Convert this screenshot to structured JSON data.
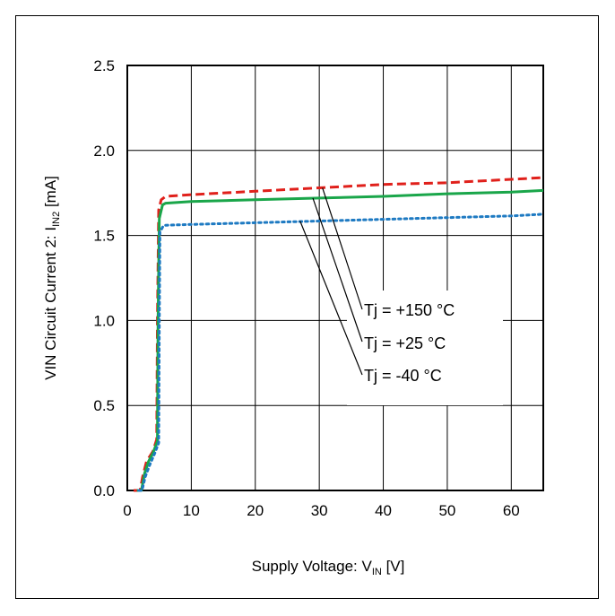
{
  "chart_data": {
    "type": "line",
    "title": "",
    "xlabel": {
      "main": "Supply Voltage: V",
      "sub": "IN",
      "unit": " [V]"
    },
    "ylabel": {
      "main": "VIN Circuit Current 2: I",
      "sub": "IN2",
      "unit": " [mA]"
    },
    "xlim": [
      0,
      65
    ],
    "ylim": [
      0,
      2.5
    ],
    "x_ticks": [
      "0",
      "10",
      "20",
      "30",
      "40",
      "50",
      "60"
    ],
    "y_ticks": [
      "0.0",
      "0.5",
      "1.0",
      "1.5",
      "2.0",
      "2.5"
    ],
    "grid": true,
    "series": [
      {
        "name": "Tj = +150 °C",
        "color": "#e0201b",
        "style": "dashed",
        "points": [
          [
            1.0,
            0.0
          ],
          [
            2.0,
            0.0
          ],
          [
            2.4,
            0.08
          ],
          [
            3.0,
            0.17
          ],
          [
            4.0,
            0.23
          ],
          [
            4.6,
            0.3
          ],
          [
            4.7,
            1.0
          ],
          [
            4.9,
            1.65
          ],
          [
            5.3,
            1.71
          ],
          [
            6.0,
            1.73
          ],
          [
            10,
            1.74
          ],
          [
            20,
            1.76
          ],
          [
            30,
            1.78
          ],
          [
            40,
            1.8
          ],
          [
            50,
            1.81
          ],
          [
            60,
            1.83
          ],
          [
            65,
            1.84
          ]
        ]
      },
      {
        "name": "Tj = +25 °C",
        "color": "#1aa64a",
        "style": "solid",
        "points": [
          [
            1.5,
            0.0
          ],
          [
            2.2,
            0.0
          ],
          [
            2.7,
            0.1
          ],
          [
            3.3,
            0.17
          ],
          [
            4.0,
            0.22
          ],
          [
            4.7,
            0.29
          ],
          [
            4.8,
            1.0
          ],
          [
            5.0,
            1.6
          ],
          [
            5.5,
            1.68
          ],
          [
            6.0,
            1.69
          ],
          [
            10,
            1.7
          ],
          [
            20,
            1.71
          ],
          [
            30,
            1.72
          ],
          [
            40,
            1.73
          ],
          [
            50,
            1.745
          ],
          [
            60,
            1.755
          ],
          [
            65,
            1.765
          ]
        ]
      },
      {
        "name": "Tj = -40 °C",
        "color": "#1e7ac2",
        "style": "dotted",
        "points": [
          [
            1.8,
            0.0
          ],
          [
            2.3,
            0.0
          ],
          [
            2.8,
            0.08
          ],
          [
            3.5,
            0.15
          ],
          [
            4.3,
            0.22
          ],
          [
            4.9,
            0.28
          ],
          [
            5.0,
            1.0
          ],
          [
            5.1,
            1.52
          ],
          [
            5.6,
            1.555
          ],
          [
            6.0,
            1.56
          ],
          [
            10,
            1.565
          ],
          [
            20,
            1.575
          ],
          [
            30,
            1.585
          ],
          [
            40,
            1.595
          ],
          [
            50,
            1.605
          ],
          [
            60,
            1.615
          ],
          [
            65,
            1.625
          ]
        ]
      }
    ],
    "legend_placement": "center-right, with leader lines to curves",
    "annotations": [
      {
        "text": "Tj = +150 °C",
        "target_series": "Tj = +150 °C",
        "anchor_x": 30.5,
        "anchor_y": 1.78
      },
      {
        "text": "Tj = +25 °C",
        "target_series": "Tj = +25 °C",
        "anchor_x": 29.0,
        "anchor_y": 1.72
      },
      {
        "text": "Tj = -40 °C",
        "target_series": "Tj = -40 °C",
        "anchor_x": 27.0,
        "anchor_y": 1.585
      }
    ]
  }
}
